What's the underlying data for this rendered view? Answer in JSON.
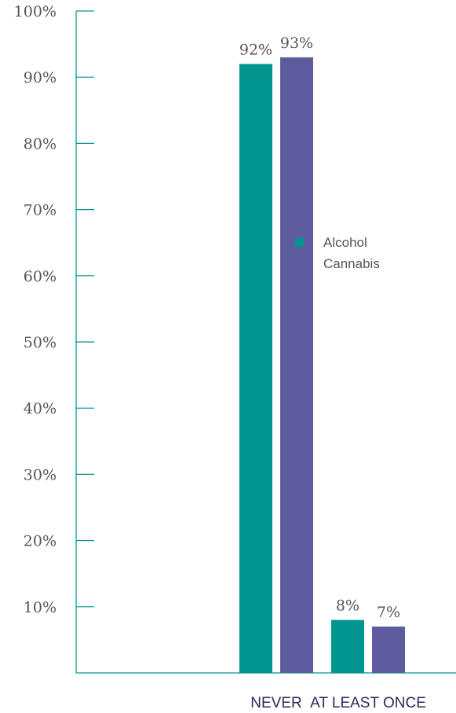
{
  "chart_data": {
    "type": "bar",
    "categories": [
      "NEVER",
      "AT LEAST ONCE"
    ],
    "series": [
      {
        "name": "Alcohol",
        "values": [
          92,
          8
        ],
        "labels": [
          "92%",
          "8%"
        ],
        "color": "#00968f"
      },
      {
        "name": "Cannabis",
        "values": [
          93,
          7
        ],
        "labels": [
          "93%",
          "7%"
        ],
        "color": "#5c5c9e"
      }
    ],
    "y_ticks": [
      10,
      20,
      30,
      40,
      50,
      60,
      70,
      80,
      90,
      100
    ],
    "y_tick_labels": [
      "10%",
      "20%",
      "30%",
      "40%",
      "50%",
      "60%",
      "70%",
      "80%",
      "90%",
      "100%"
    ],
    "ylim": [
      0,
      100
    ],
    "title": "",
    "xlabel": "",
    "ylabel": "",
    "grid": false,
    "legend_position": "right",
    "axis_color": "#00968f"
  }
}
